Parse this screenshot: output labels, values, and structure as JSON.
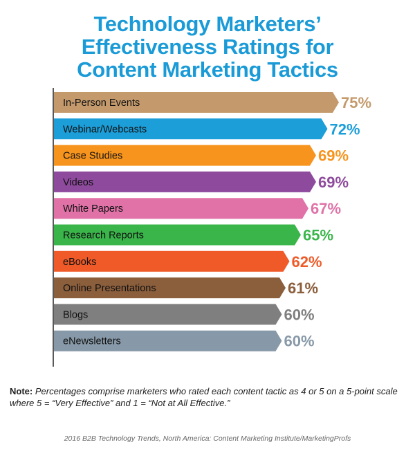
{
  "title_lines": [
    "Technology Marketers’",
    "Effectiveness Ratings for",
    "Content Marketing Tactics"
  ],
  "chart_data": {
    "type": "bar",
    "orientation": "horizontal",
    "title": "Technology Marketers’ Effectiveness Ratings for Content Marketing Tactics",
    "categories": [
      "In-Person Events",
      "Webinar/Webcasts",
      "Case Studies",
      "Videos",
      "White Papers",
      "Research Reports",
      "eBooks",
      "Online Presentations",
      "Blogs",
      "eNewsletters"
    ],
    "values": [
      75,
      72,
      69,
      69,
      67,
      65,
      62,
      61,
      60,
      60
    ],
    "value_labels": [
      "75%",
      "72%",
      "69%",
      "69%",
      "67%",
      "65%",
      "62%",
      "61%",
      "60%",
      "60%"
    ],
    "colors": [
      "#c49a6c",
      "#1c9ed9",
      "#f7941d",
      "#8e4a9d",
      "#e072a8",
      "#3ab54a",
      "#f05a28",
      "#8b5e3c",
      "#7f7f7f",
      "#8799a8"
    ],
    "unit": "%",
    "xlabel": "",
    "ylabel": ""
  },
  "note": {
    "label": "Note:",
    "text": "Percentages comprise marketers who rated each content tactic as 4 or 5 on a 5-point scale where 5 = “Very Effective” and 1 = “Not at All Effective.”"
  },
  "source": "2016 B2B Technology Trends, North America: Content Marketing Institute/MarketingProfs"
}
